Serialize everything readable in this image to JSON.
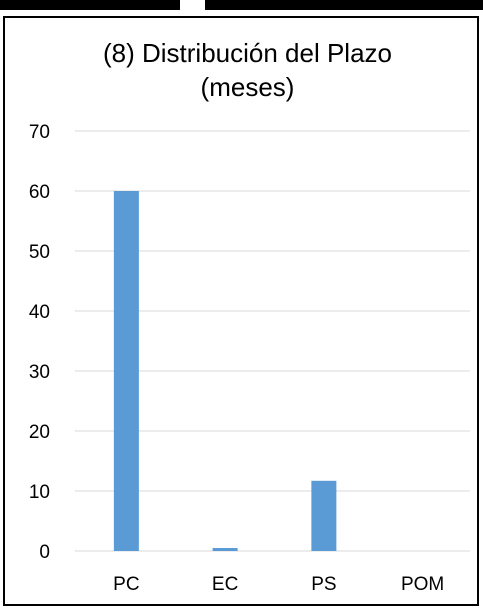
{
  "chart_data": {
    "type": "bar",
    "title_line1": "(8) Distribución del Plazo",
    "title_line2": "(meses)",
    "xlabel": "",
    "ylabel": "",
    "categories": [
      "PC",
      "EC",
      "PS",
      "POM"
    ],
    "values": [
      60,
      0.5,
      11.7,
      0
    ],
    "ylim": [
      0,
      70
    ],
    "yticks": [
      "0",
      "10",
      "20",
      "30",
      "40",
      "50",
      "60",
      "70"
    ],
    "grid": true,
    "legend": "none",
    "bar_color": "#5B9BD5",
    "grid_color": "#D9D9D9"
  }
}
